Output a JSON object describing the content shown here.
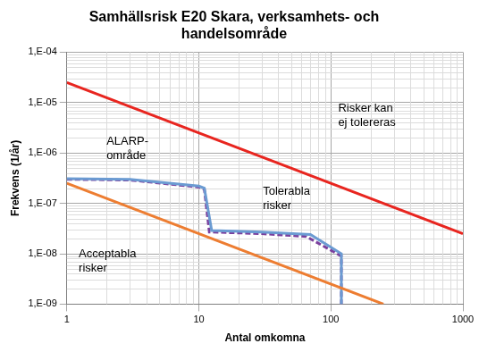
{
  "chart_data": {
    "type": "line",
    "title": "Samhällsrisk E20 Skara, verksamhets- och handelsområde",
    "x_label": "Antal omkomna",
    "y_label": "Frekvens (1/år)",
    "log": true,
    "grid": true,
    "xlim": [
      1,
      1000
    ],
    "xticks": [
      1,
      10,
      100,
      1000
    ],
    "ylim": [
      1e-09,
      0.0001
    ],
    "yticks": [
      {
        "value": 1e-09,
        "label": "1,E-09"
      },
      {
        "value": 1e-08,
        "label": "1,E-08"
      },
      {
        "value": 1e-07,
        "label": "1,E-07"
      },
      {
        "value": 1e-06,
        "label": "1,E-06"
      },
      {
        "value": 1e-05,
        "label": "1,E-05"
      },
      {
        "value": 0.0001,
        "label": "1,E-04"
      }
    ],
    "series": [
      {
        "color": "#e8251f",
        "line_style": "solid",
        "marker": "none",
        "x": [
          1,
          1000
        ],
        "values": [
          2.5e-05,
          2.5e-08
        ]
      },
      {
        "color": "#ed7d31",
        "line_style": "solid",
        "marker": "none",
        "x": [
          1,
          250
        ],
        "values": [
          2.5e-07,
          1e-09
        ]
      },
      {
        "color": "#6b9bd2",
        "line_style": "solid",
        "marker": "none",
        "x": [
          1,
          3,
          10,
          11,
          12.5,
          30,
          70,
          120,
          120
        ],
        "values": [
          3.1e-07,
          3e-07,
          2.2e-07,
          2e-07,
          2.9e-08,
          2.7e-08,
          2.4e-08,
          1e-08,
          1e-09
        ]
      },
      {
        "color": "#7a3f9d",
        "line_style": "dashed",
        "marker": "none",
        "x": [
          1,
          3,
          10,
          11,
          12,
          30,
          65,
          120,
          120
        ],
        "values": [
          3e-07,
          2.9e-07,
          2.1e-07,
          1.9e-07,
          2.7e-08,
          2.5e-08,
          2.2e-08,
          9e-09,
          1e-09
        ]
      }
    ],
    "annotations": [
      {
        "text": [
          "Risker kan",
          "ej tolereras"
        ]
      },
      {
        "text": [
          "ALARP-",
          "område"
        ]
      },
      {
        "text": [
          "Tolerabla",
          "risker"
        ]
      },
      {
        "text": [
          "Acceptabla",
          "risker"
        ]
      }
    ]
  }
}
